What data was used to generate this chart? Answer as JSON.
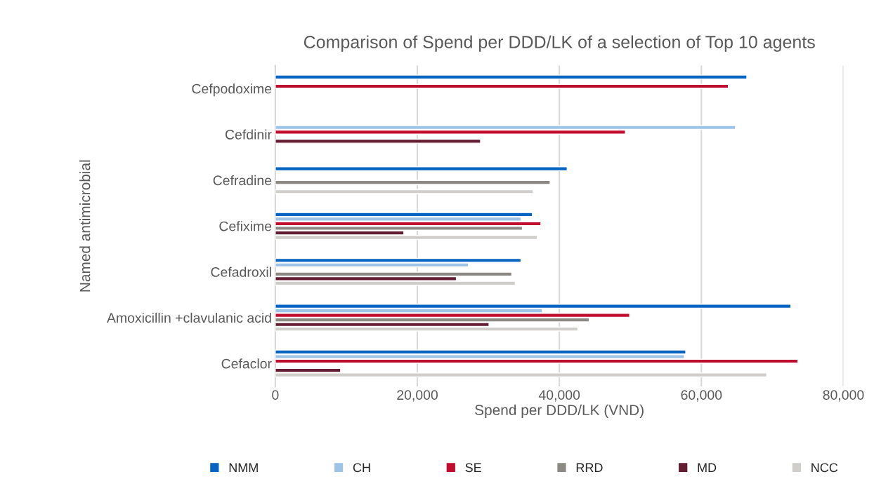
{
  "chart_data": {
    "type": "bar",
    "orientation": "horizontal",
    "title": "Comparison of Spend per DDD/LK of a selection of Top 10 agents",
    "xlabel": "Spend per DDD/LK (VND)",
    "ylabel": "Named antimicrobial",
    "categories": [
      "Cefpodoxime",
      "Cefdinir",
      "Cefradine",
      "Cefixime",
      "Cefadroxil",
      "Amoxicillin +clavulanic acid",
      "Cefaclor"
    ],
    "series": [
      {
        "name": "NMM",
        "color": "#0563c1",
        "values": [
          66400,
          null,
          41100,
          36200,
          34600,
          72600,
          57800
        ]
      },
      {
        "name": "CH",
        "color": "#9dc3e6",
        "values": [
          null,
          64800,
          null,
          34600,
          27200,
          37600,
          57600
        ]
      },
      {
        "name": "SE",
        "color": "#c00d2e",
        "values": [
          63800,
          49300,
          null,
          37400,
          null,
          49900,
          73600
        ]
      },
      {
        "name": "RRD",
        "color": "#8c8985",
        "values": [
          null,
          null,
          38700,
          34800,
          33300,
          44200,
          null
        ]
      },
      {
        "name": "MD",
        "color": "#621d33",
        "values": [
          null,
          28900,
          null,
          18100,
          25500,
          30100,
          9200
        ]
      },
      {
        "name": "NCC",
        "color": "#d0cecb",
        "values": [
          null,
          null,
          36300,
          36900,
          33800,
          42600,
          69200
        ]
      }
    ],
    "xlim": [
      0,
      80000
    ],
    "xticks": [
      {
        "value": 0,
        "label": "0"
      },
      {
        "value": 20000,
        "label": "20,000"
      },
      {
        "value": 40000,
        "label": "40,000"
      },
      {
        "value": 60000,
        "label": "60,000"
      },
      {
        "value": 80000,
        "label": "80,000"
      }
    ],
    "grid": "x",
    "legend": "bottom"
  }
}
